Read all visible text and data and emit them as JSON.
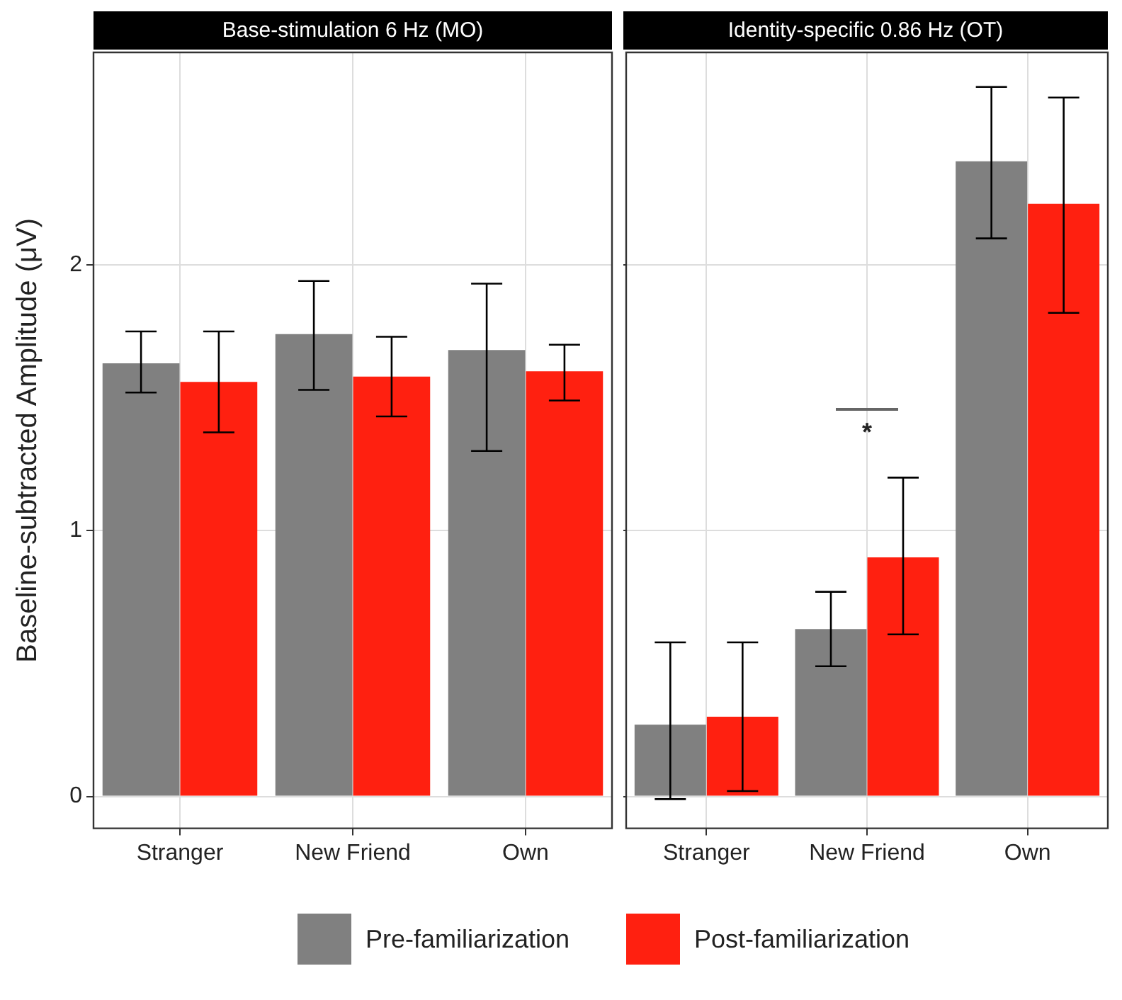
{
  "chart_data": [
    {
      "type": "bar",
      "title": "Base-stimulation 6 Hz (MO)",
      "ylabel": "Baseline-subtracted Amplitude (μV)",
      "categories": [
        "Stranger",
        "New Friend",
        "Own"
      ],
      "series": [
        {
          "name": "Pre-familiarization",
          "color": "#808080",
          "values": [
            1.63,
            1.74,
            1.68
          ],
          "errors": [
            [
              1.52,
              1.75
            ],
            [
              1.53,
              1.94
            ],
            [
              1.3,
              1.93
            ]
          ]
        },
        {
          "name": "Post-familiarization",
          "color": "#ff2010",
          "values": [
            1.56,
            1.58,
            1.6
          ],
          "errors": [
            [
              1.37,
              1.75
            ],
            [
              1.43,
              1.73
            ],
            [
              1.49,
              1.7
            ]
          ]
        }
      ],
      "ylim": [
        -0.12,
        2.8
      ],
      "yticks": [
        0,
        1,
        2
      ],
      "grid": true,
      "legend": "bottom"
    },
    {
      "type": "bar",
      "title": "Identity-specific 0.86 Hz (OT)",
      "categories": [
        "Stranger",
        "New Friend",
        "Own"
      ],
      "series": [
        {
          "name": "Pre-familiarization",
          "color": "#808080",
          "values": [
            0.27,
            0.63,
            2.39
          ],
          "errors": [
            [
              -0.01,
              0.58
            ],
            [
              0.49,
              0.77
            ],
            [
              2.1,
              2.67
            ]
          ]
        },
        {
          "name": "Post-familiarization",
          "color": "#ff2010",
          "values": [
            0.3,
            0.9,
            2.23
          ],
          "errors": [
            [
              0.02,
              0.58
            ],
            [
              0.61,
              1.2
            ],
            [
              1.82,
              2.63
            ]
          ]
        }
      ],
      "ylim": [
        -0.12,
        2.8
      ],
      "yticks": [
        0,
        1,
        2
      ],
      "grid": true,
      "tick_labels": "x",
      "annotations": [
        "*"
      ]
    }
  ]
}
